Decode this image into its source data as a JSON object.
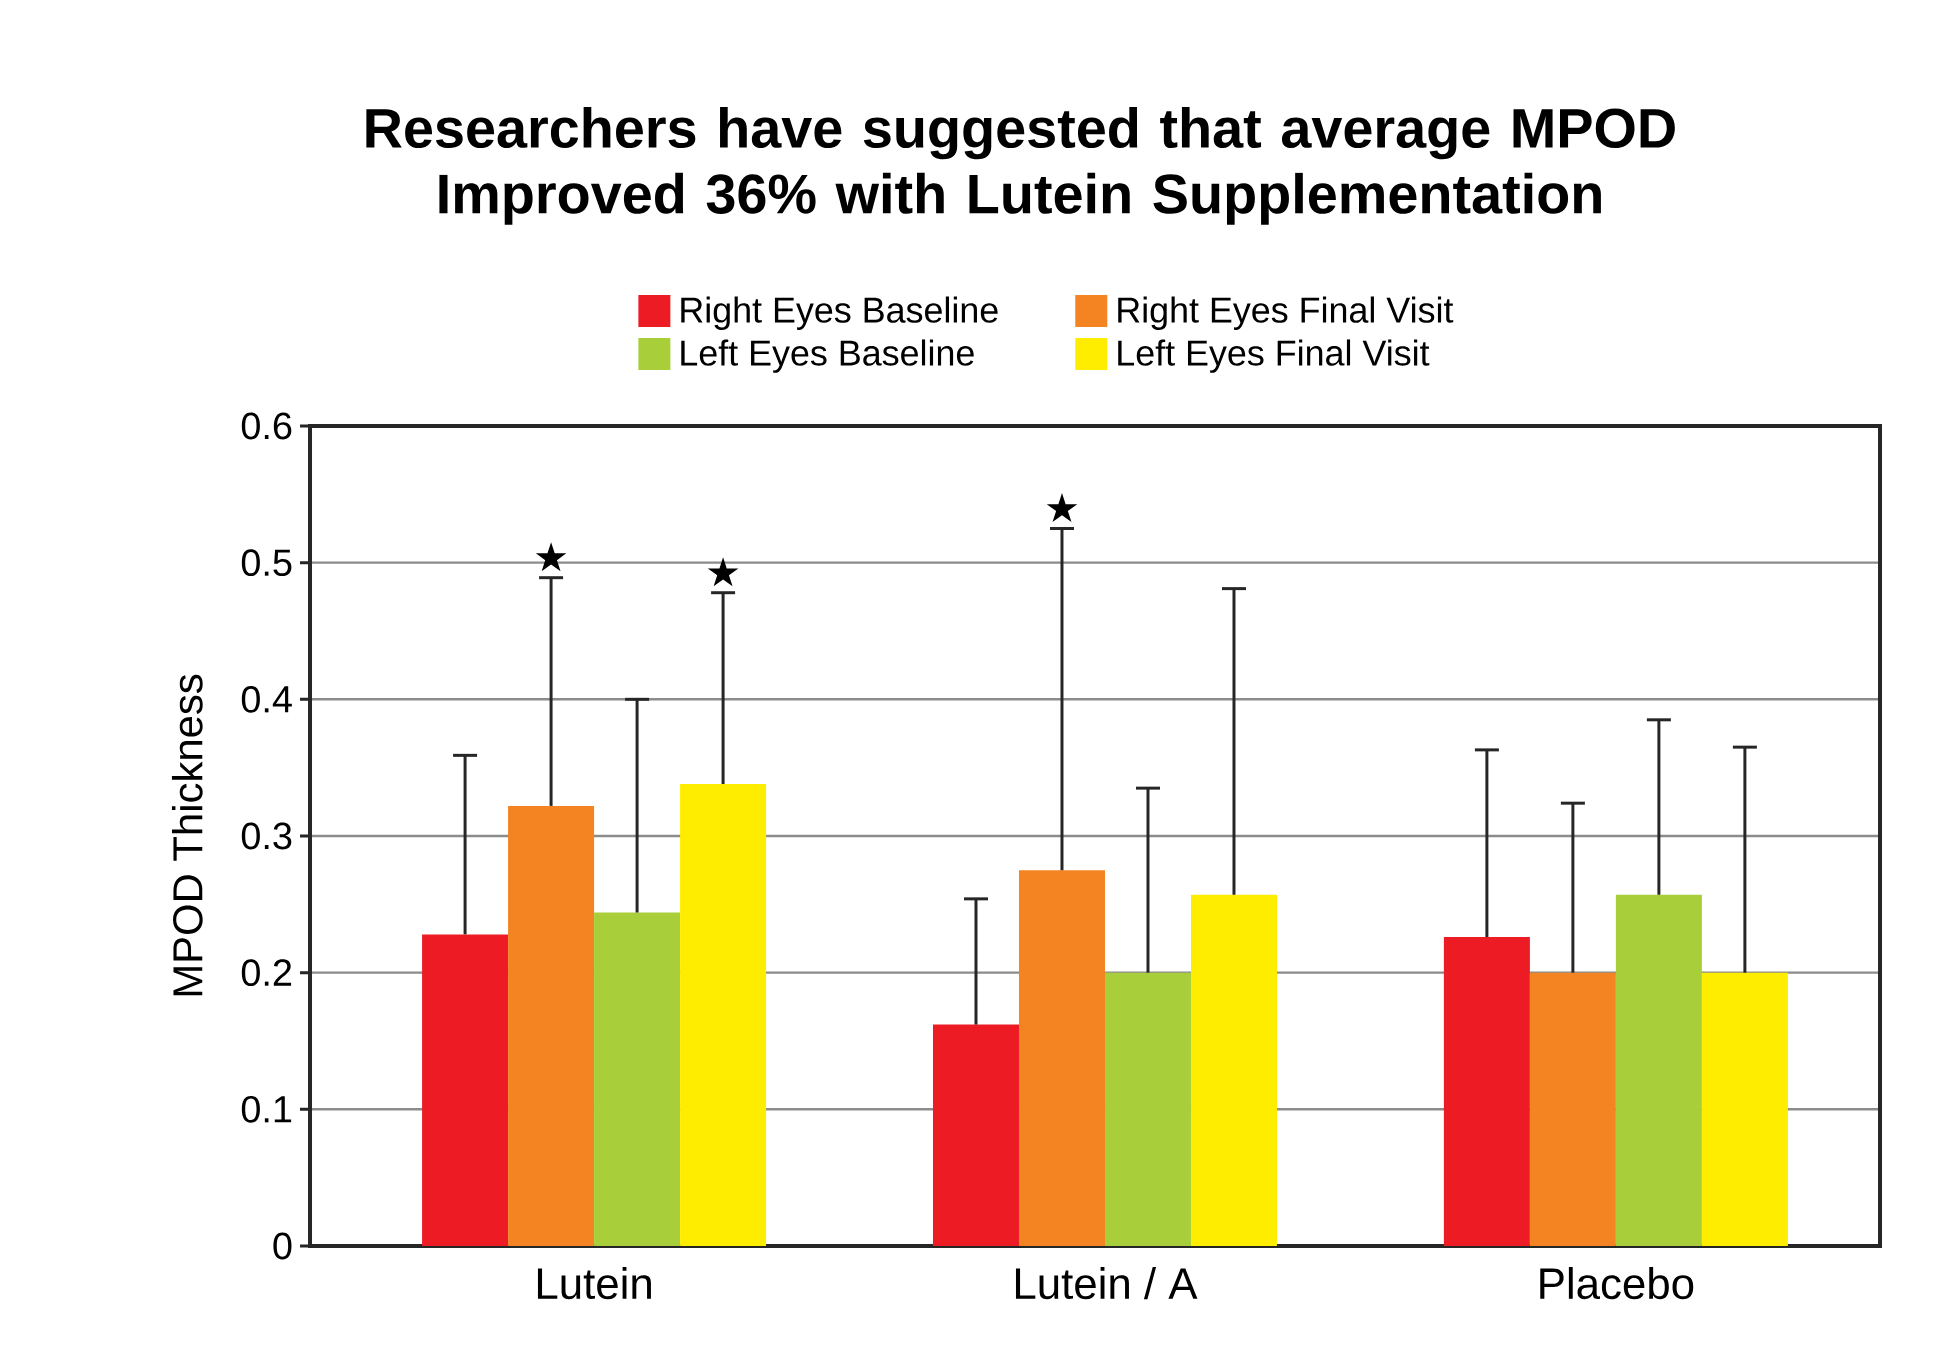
{
  "chart_data": {
    "type": "bar",
    "title": "Researchers have suggested that average MPOD Improved 36% with Lutein Supplementation",
    "ylabel": "MPOD Thickness",
    "categories": [
      "Lutein",
      "Lutein / A",
      "Placebo"
    ],
    "series": [
      {
        "name": "Right Eyes Baseline",
        "color": "#ed1c24",
        "values": [
          0.228,
          0.162,
          0.226
        ],
        "errors": [
          [
            0.228,
            0.359
          ],
          [
            0.162,
            0.254
          ],
          [
            0.226,
            0.363
          ]
        ]
      },
      {
        "name": "Right Eyes Final Visit",
        "color": "#f38421",
        "values": [
          0.322,
          0.275,
          0.2
        ],
        "errors": [
          [
            0.322,
            0.489
          ],
          [
            0.275,
            0.525
          ],
          [
            0.2,
            0.324
          ]
        ]
      },
      {
        "name": "Left Eyes Baseline",
        "color": "#a8ce3a",
        "values": [
          0.244,
          0.2,
          0.257
        ],
        "errors": [
          [
            0.244,
            0.4
          ],
          [
            0.2,
            0.335
          ],
          [
            0.257,
            0.385
          ]
        ]
      },
      {
        "name": "Left Eyes Final Visit",
        "color": "#ffed00",
        "values": [
          0.338,
          0.257,
          0.2
        ],
        "errors": [
          [
            0.338,
            0.478
          ],
          [
            0.257,
            0.481
          ],
          [
            0.2,
            0.365
          ]
        ]
      }
    ],
    "annotations": [
      "★",
      "★",
      "★"
    ],
    "ylim": [
      0,
      0.6
    ],
    "yticks": [
      0,
      0.1,
      0.2,
      0.3,
      0.4,
      0.5,
      0.6
    ],
    "grid": "y",
    "legend": "top"
  }
}
